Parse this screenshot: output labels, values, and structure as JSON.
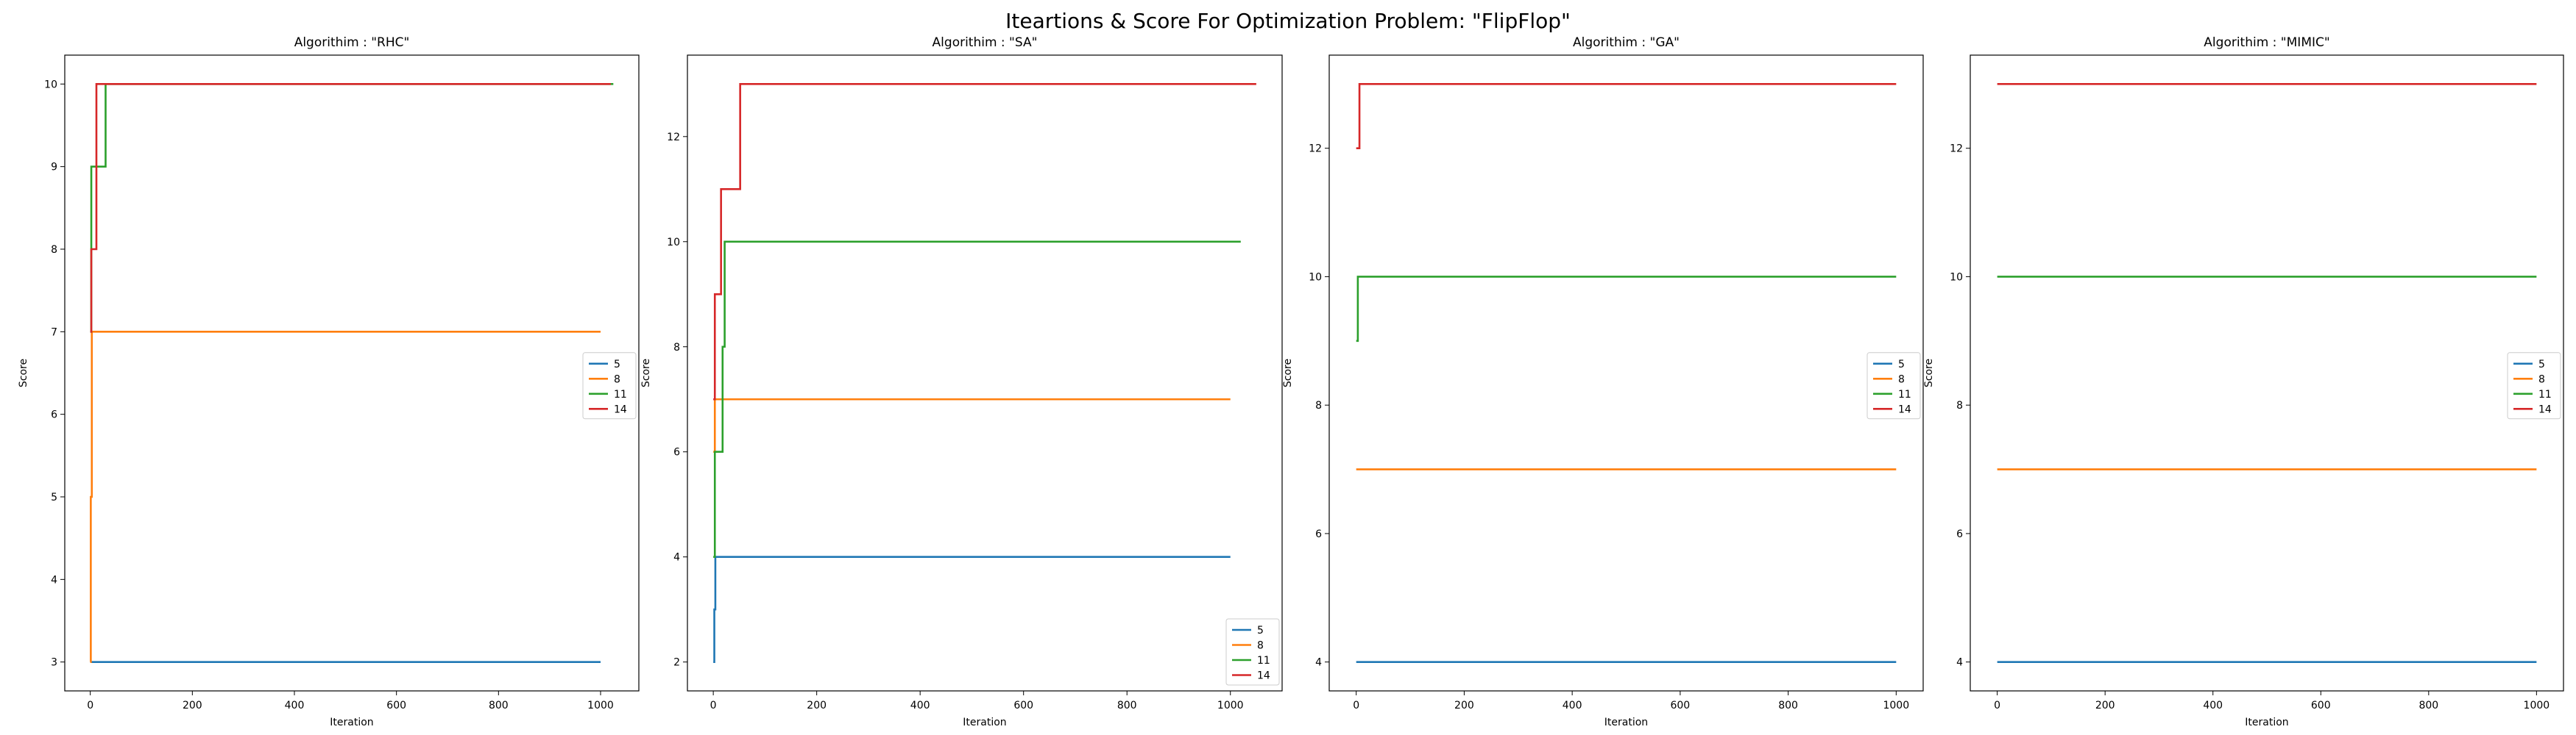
{
  "figure": {
    "title": "Iteartions & Score For Optimization Problem: \"FlipFlop\""
  },
  "colors": {
    "5": "#1f77b4",
    "8": "#ff7f0e",
    "11": "#2ca02c",
    "14": "#d62728"
  },
  "chart_data": [
    {
      "type": "line",
      "title": "Algorithim : \"RHC\"",
      "xlabel": "Iteration",
      "ylabel": "Score",
      "xlim": [
        -50,
        1075
      ],
      "ylim": [
        2.65,
        10.35
      ],
      "xticks": [
        0,
        200,
        400,
        600,
        800,
        1000
      ],
      "yticks": [
        3,
        4,
        5,
        6,
        7,
        8,
        9,
        10
      ],
      "legend_loc": "center-right",
      "series": [
        {
          "name": "5",
          "points": [
            [
              0,
              3
            ],
            [
              1000,
              3
            ]
          ]
        },
        {
          "name": "8",
          "points": [
            [
              0,
              3
            ],
            [
              1,
              3
            ],
            [
              1,
              5
            ],
            [
              3,
              5
            ],
            [
              3,
              7
            ],
            [
              1000,
              7
            ]
          ]
        },
        {
          "name": "11",
          "points": [
            [
              0,
              7
            ],
            [
              2,
              7
            ],
            [
              2,
              9
            ],
            [
              30,
              9
            ],
            [
              30,
              10
            ],
            [
              1025,
              10
            ]
          ]
        },
        {
          "name": "14",
          "points": [
            [
              0,
              7
            ],
            [
              2,
              7
            ],
            [
              2,
              8
            ],
            [
              12,
              8
            ],
            [
              12,
              10
            ],
            [
              1020,
              10
            ]
          ]
        }
      ]
    },
    {
      "type": "line",
      "title": "Algorithim : \"SA\"",
      "xlabel": "Iteration",
      "ylabel": "Score",
      "xlim": [
        -50,
        1100
      ],
      "ylim": [
        1.45,
        13.55
      ],
      "xticks": [
        0,
        200,
        400,
        600,
        800,
        1000
      ],
      "yticks": [
        2,
        4,
        6,
        8,
        10,
        12
      ],
      "legend_loc": "lower-right",
      "series": [
        {
          "name": "5",
          "points": [
            [
              0,
              2
            ],
            [
              2,
              2
            ],
            [
              2,
              3
            ],
            [
              4,
              3
            ],
            [
              4,
              4
            ],
            [
              1000,
              4
            ]
          ]
        },
        {
          "name": "8",
          "points": [
            [
              0,
              6
            ],
            [
              3,
              6
            ],
            [
              3,
              7
            ],
            [
              1000,
              7
            ]
          ]
        },
        {
          "name": "11",
          "points": [
            [
              0,
              4
            ],
            [
              3,
              4
            ],
            [
              3,
              6
            ],
            [
              18,
              6
            ],
            [
              18,
              8
            ],
            [
              22,
              8
            ],
            [
              22,
              10
            ],
            [
              1020,
              10
            ]
          ]
        },
        {
          "name": "14",
          "points": [
            [
              0,
              7
            ],
            [
              3,
              7
            ],
            [
              3,
              9
            ],
            [
              15,
              9
            ],
            [
              15,
              11
            ],
            [
              52,
              11
            ],
            [
              52,
              13
            ],
            [
              1050,
              13
            ]
          ]
        }
      ]
    },
    {
      "type": "line",
      "title": "Algorithim : \"GA\"",
      "xlabel": "Iteration",
      "ylabel": "Score",
      "xlim": [
        -50,
        1050
      ],
      "ylim": [
        3.55,
        13.45
      ],
      "xticks": [
        0,
        200,
        400,
        600,
        800,
        1000
      ],
      "yticks": [
        4,
        6,
        8,
        10,
        12
      ],
      "legend_loc": "center-right",
      "series": [
        {
          "name": "5",
          "points": [
            [
              0,
              4
            ],
            [
              1000,
              4
            ]
          ]
        },
        {
          "name": "8",
          "points": [
            [
              0,
              7
            ],
            [
              1000,
              7
            ]
          ]
        },
        {
          "name": "11",
          "points": [
            [
              0,
              9
            ],
            [
              3,
              9
            ],
            [
              3,
              10
            ],
            [
              1000,
              10
            ]
          ]
        },
        {
          "name": "14",
          "points": [
            [
              0,
              12
            ],
            [
              6,
              12
            ],
            [
              6,
              13
            ],
            [
              1000,
              13
            ]
          ]
        }
      ]
    },
    {
      "type": "line",
      "title": "Algorithim : \"MIMIC\"",
      "xlabel": "Iteration",
      "ylabel": "Score",
      "xlim": [
        -50,
        1050
      ],
      "ylim": [
        3.55,
        13.45
      ],
      "xticks": [
        0,
        200,
        400,
        600,
        800,
        1000
      ],
      "yticks": [
        4,
        6,
        8,
        10,
        12
      ],
      "legend_loc": "center-right",
      "series": [
        {
          "name": "5",
          "points": [
            [
              0,
              4
            ],
            [
              1000,
              4
            ]
          ]
        },
        {
          "name": "8",
          "points": [
            [
              0,
              7
            ],
            [
              1000,
              7
            ]
          ]
        },
        {
          "name": "11",
          "points": [
            [
              0,
              10
            ],
            [
              1000,
              10
            ]
          ]
        },
        {
          "name": "14",
          "points": [
            [
              0,
              13
            ],
            [
              1000,
              13
            ]
          ]
        }
      ]
    }
  ]
}
